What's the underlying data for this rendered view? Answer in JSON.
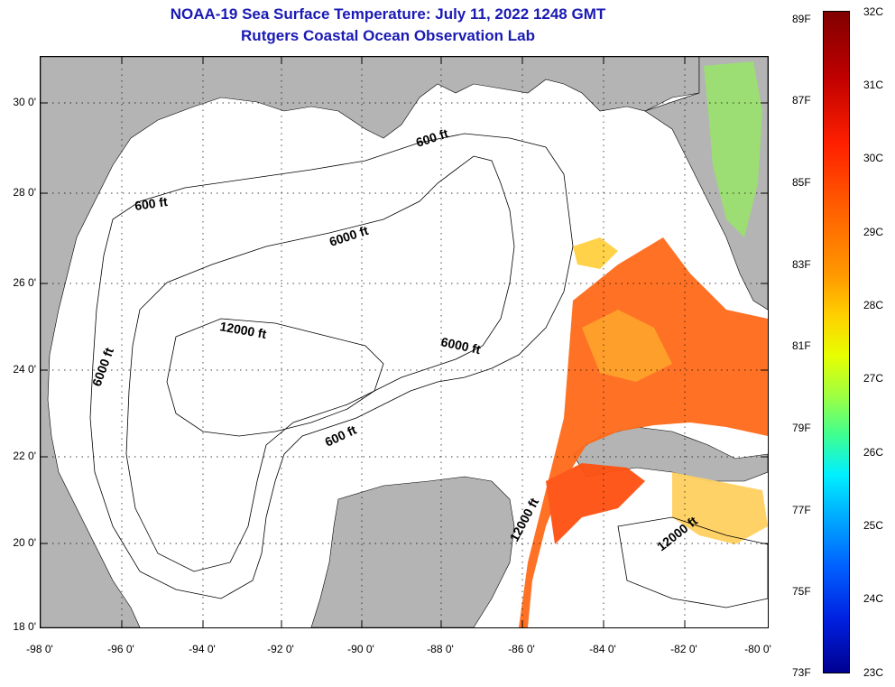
{
  "header": {
    "title_line1": "NOAA-19 Sea Surface Temperature:  July 11, 2022 1248 GMT",
    "title_line2": "Rutgers Coastal Ocean Observation Lab"
  },
  "map": {
    "lat_labels": [
      "30 0'",
      "28 0'",
      "26 0'",
      "24 0'",
      "22 0'",
      "20 0'",
      "18 0'"
    ],
    "lon_labels": [
      "-98 0'",
      "-96 0'",
      "-94 0'",
      "-92 0'",
      "-90 0'",
      "-88 0'",
      "-86 0'",
      "-84 0'",
      "-82 0'",
      "-80 0'"
    ],
    "contour_labels": {
      "c600_north": "600 ft",
      "c600_west": "600 ft",
      "c6000_north": "6000 ft",
      "c6000_west": "6000 ft",
      "c6000_east": "6000 ft",
      "c12000_center": "12000 ft",
      "c600_south": "600 ft",
      "c12000_east": "12000 ft",
      "c12000_south": "12000 ft"
    },
    "colors": {
      "land": "#b4b4b4",
      "water": "#ffffff"
    }
  },
  "colorbar": {
    "fahrenheit": [
      "89F",
      "87F",
      "85F",
      "83F",
      "81F",
      "79F",
      "77F",
      "75F",
      "73F"
    ],
    "celsius": [
      "32C",
      "31C",
      "30C",
      "29C",
      "28C",
      "27C",
      "26C",
      "25C",
      "24C",
      "23C"
    ]
  }
}
